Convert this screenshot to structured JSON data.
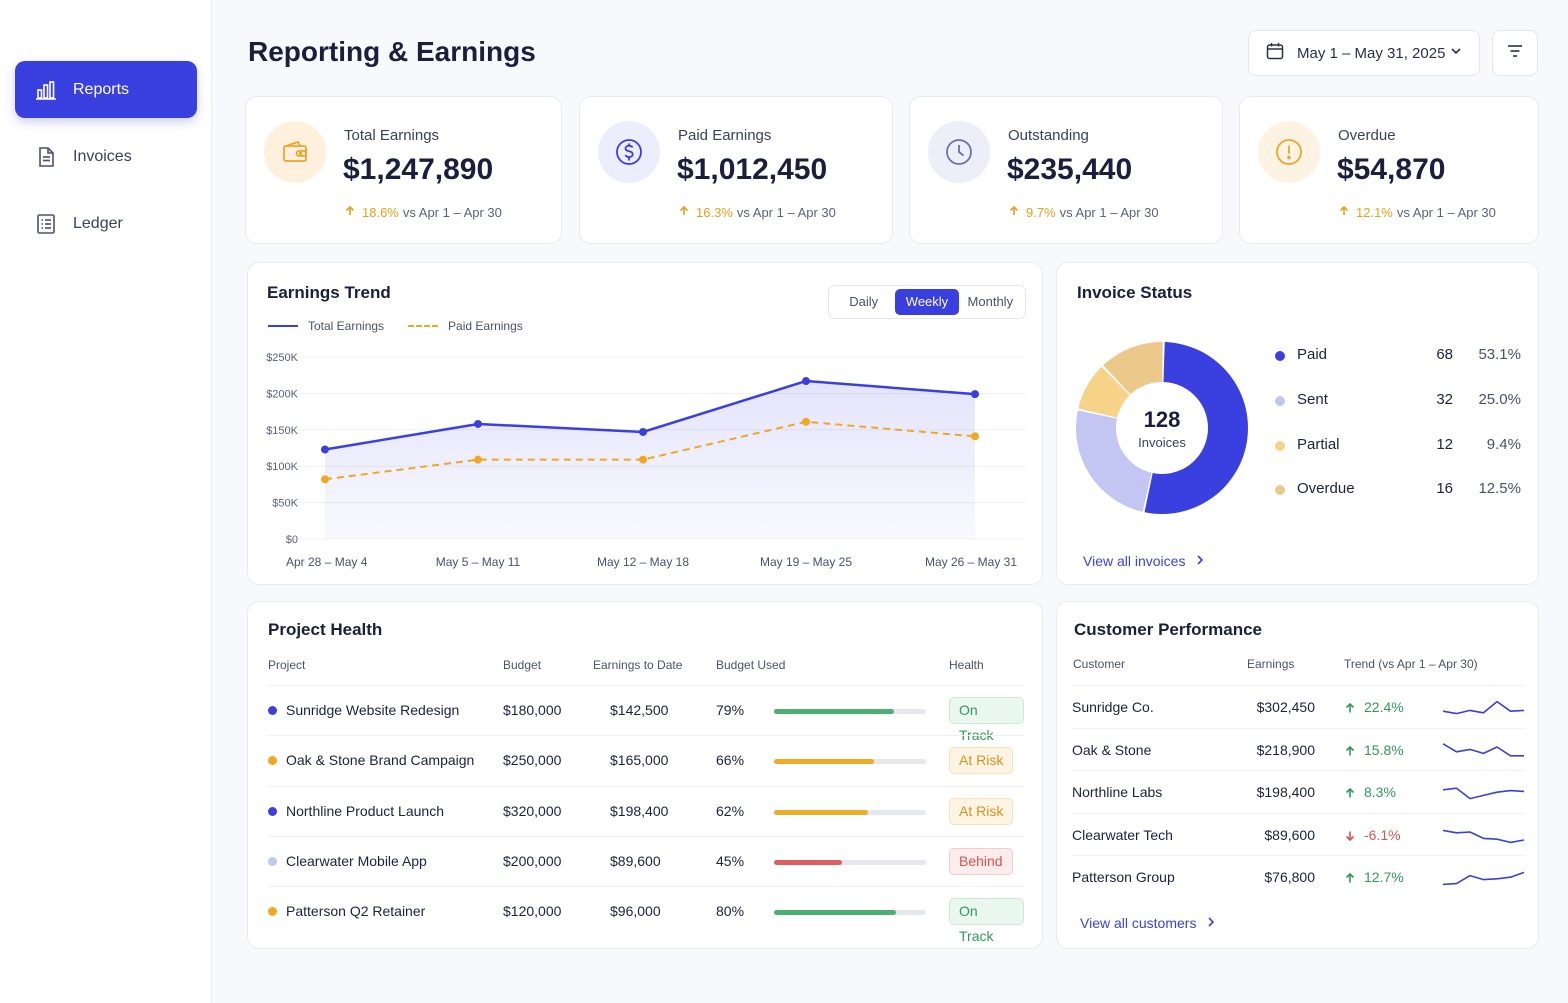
{
  "sidebar": {
    "items": [
      {
        "label": "Reports",
        "icon": "bar-chart-icon",
        "active": true
      },
      {
        "label": "Invoices",
        "icon": "document-icon",
        "active": false
      },
      {
        "label": "Ledger",
        "icon": "list-icon",
        "active": false
      }
    ]
  },
  "header": {
    "title": "Reporting & Earnings",
    "date_range": "May 1 – May 31, 2025"
  },
  "kpis": [
    {
      "label": "Total Earnings",
      "value": "$1,247,890",
      "change": "18.6%",
      "compare": "vs Apr 1 – Apr 30",
      "icon": "wallet-icon"
    },
    {
      "label": "Paid Earnings",
      "value": "$1,012,450",
      "change": "16.3%",
      "compare": "vs Apr 1 – Apr 30",
      "icon": "dollar-icon"
    },
    {
      "label": "Outstanding",
      "value": "$235,440",
      "change": "9.7%",
      "compare": "vs Apr 1 – Apr 30",
      "icon": "clock-icon"
    },
    {
      "label": "Overdue",
      "value": "$54,870",
      "change": "12.1%",
      "compare": "vs Apr 1 – Apr 30",
      "icon": "alert-icon"
    }
  ],
  "trend": {
    "title": "Earnings Trend",
    "toggle": [
      "Daily",
      "Weekly",
      "Monthly"
    ],
    "toggle_selected": "Weekly"
  },
  "chart_data": {
    "type": "line",
    "title": "Earnings Trend",
    "categories": [
      "Apr 28 – May 4",
      "May 5 – May 11",
      "May 12 – May 18",
      "May 19 – May 25",
      "May 26 – May 31"
    ],
    "series": [
      {
        "name": "Total Earnings",
        "values": [
          123000,
          158000,
          147000,
          217000,
          199000
        ],
        "color": "#3a3fe0",
        "style": "solid"
      },
      {
        "name": "Paid Earnings",
        "values": [
          82000,
          109000,
          109000,
          161000,
          141000
        ],
        "color": "#f0a820",
        "style": "dashed"
      }
    ],
    "y_ticks": [
      "$0",
      "$50K",
      "$100K",
      "$150K",
      "$200K",
      "$250K"
    ],
    "ylim": [
      0,
      250000
    ],
    "grid": true,
    "legend": "top-left"
  },
  "invoice_status": {
    "title": "Invoice Status",
    "total": "128",
    "total_label": "Invoices",
    "items": [
      {
        "name": "Paid",
        "count": "68",
        "pct": "53.1%",
        "value": 68,
        "color": "#3a3fe0"
      },
      {
        "name": "Sent",
        "count": "32",
        "pct": "25.0%",
        "value": 32,
        "color": "#c3c6f3"
      },
      {
        "name": "Partial",
        "count": "12",
        "pct": "9.4%",
        "value": 12,
        "color": "#f7d38a"
      },
      {
        "name": "Overdue",
        "count": "16",
        "pct": "12.5%",
        "value": 16,
        "color": "#ecc98a"
      }
    ],
    "link": "View all invoices"
  },
  "project_health": {
    "title": "Project Health",
    "columns": [
      "Project",
      "Budget",
      "Earnings to Date",
      "Budget Used",
      "Health"
    ],
    "rows": [
      {
        "name": "Sunridge Website Redesign",
        "budget": "$180,000",
        "earned": "$142,500",
        "used": "79%",
        "used_value": 0.79,
        "health": "On Track",
        "status": "ok",
        "dot": "#3a3fe0",
        "bar": "#4caf74"
      },
      {
        "name": "Oak & Stone Brand Campaign",
        "budget": "$250,000",
        "earned": "$165,000",
        "used": "66%",
        "used_value": 0.66,
        "health": "At Risk",
        "status": "risk",
        "dot": "#f0a820",
        "bar": "#eeab26"
      },
      {
        "name": "Northline Product Launch",
        "budget": "$320,000",
        "earned": "$198,400",
        "used": "62%",
        "used_value": 0.62,
        "health": "At Risk",
        "status": "risk",
        "dot": "#3a3fe0",
        "bar": "#eeab26"
      },
      {
        "name": "Clearwater Mobile App",
        "budget": "$200,000",
        "earned": "$89,600",
        "used": "45%",
        "used_value": 0.45,
        "health": "Behind",
        "status": "behind",
        "dot": "#c3c6f3",
        "bar": "#e25c5c"
      },
      {
        "name": "Patterson Q2 Retainer",
        "budget": "$120,000",
        "earned": "$96,000",
        "used": "80%",
        "used_value": 0.8,
        "health": "On Track",
        "status": "ok",
        "dot": "#f0a820",
        "bar": "#4caf74"
      }
    ]
  },
  "customers": {
    "title": "Customer Performance",
    "columns": [
      "Customer",
      "Earnings",
      "Trend (vs Apr 1 – Apr 30)"
    ],
    "rows": [
      {
        "name": "Sunridge Co.",
        "earnings": "$302,450",
        "trend": "22.4%",
        "up": true,
        "spark": [
          0.3,
          0.15,
          0.35,
          0.2,
          0.9,
          0.3,
          0.35
        ]
      },
      {
        "name": "Oak & Stone",
        "earnings": "$218,900",
        "trend": "15.8%",
        "up": true,
        "spark": [
          0.95,
          0.45,
          0.6,
          0.35,
          0.75,
          0.2,
          0.2
        ]
      },
      {
        "name": "Northline Labs",
        "earnings": "$198,400",
        "trend": "8.3%",
        "up": true,
        "spark": [
          0.7,
          0.8,
          0.15,
          0.35,
          0.55,
          0.65,
          0.6
        ]
      },
      {
        "name": "Clearwater Tech",
        "earnings": "$89,600",
        "trend": "-6.1%",
        "up": false,
        "spark": [
          0.85,
          0.7,
          0.75,
          0.35,
          0.3,
          0.1,
          0.25
        ]
      },
      {
        "name": "Patterson Group",
        "earnings": "$76,800",
        "trend": "12.7%",
        "up": true,
        "spark": [
          0.1,
          0.15,
          0.65,
          0.4,
          0.45,
          0.55,
          0.85
        ]
      }
    ],
    "link": "View all customers"
  }
}
